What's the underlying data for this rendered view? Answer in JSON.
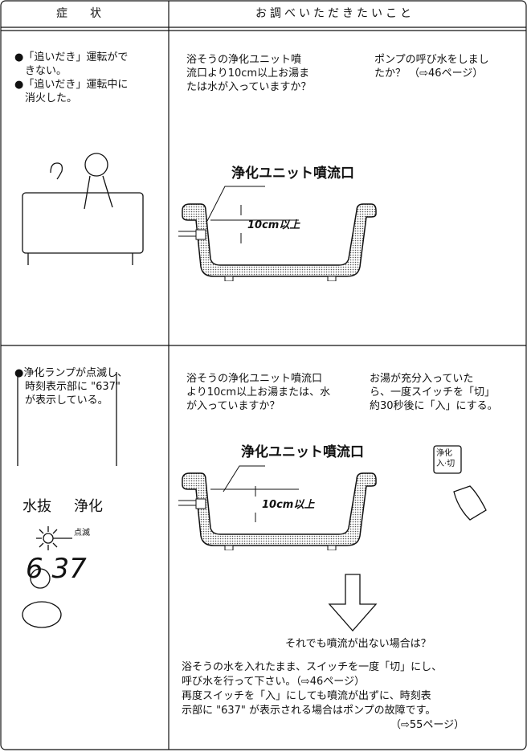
{
  "header": {
    "symptom": "症　　状",
    "check": "お調べいただきたいこと"
  },
  "rows": [
    {
      "symptom": [
        "●「追いだき」運転がで",
        "　きない。",
        "●「追いだき」運転中に",
        "　消火した。"
      ],
      "check_left": [
        "浴そうの浄化ユニット噴",
        "流口より10cm以上お湯ま",
        "たは水が入っていますか？"
      ],
      "check_right": [
        "ポンプの呼び水をしまし",
        "たか？ （⇨46ページ）"
      ],
      "diagram": {
        "label": "浄化ユニット噴流口",
        "depth": "10cm以上"
      }
    },
    {
      "symptom": [
        "●浄化ランプが点滅し、",
        "　時刻表示部に \"637\"",
        "　が表示している。"
      ],
      "display": {
        "left": "水抜",
        "right": "浄化",
        "blink": "点滅",
        "code": "6 37"
      },
      "check_left": [
        "浴そうの浄化ユニット噴流口",
        "より10cm以上お湯または、水",
        "が入っていますか？"
      ],
      "check_right": [
        "お湯が充分入っていた",
        "ら、一度スイッチを「切」",
        "約30秒後に「入」にする。"
      ],
      "button": [
        "浄化",
        "入·切"
      ],
      "diagram": {
        "label": "浄化ユニット噴流口",
        "depth": "10cm以上"
      },
      "question": "それでも噴流が出ない場合は？",
      "notes": [
        "浴そうの水を入れたまま、スイッチを一度「切」にし、",
        "呼び水を行って下さい。（⇨46ページ）",
        "再度スイッチを「入」にしても噴流が出ずに、時刻表",
        "示部に \"637\" が表示される場合はポンプの故障です。",
        "（⇨55ページ）"
      ]
    }
  ]
}
